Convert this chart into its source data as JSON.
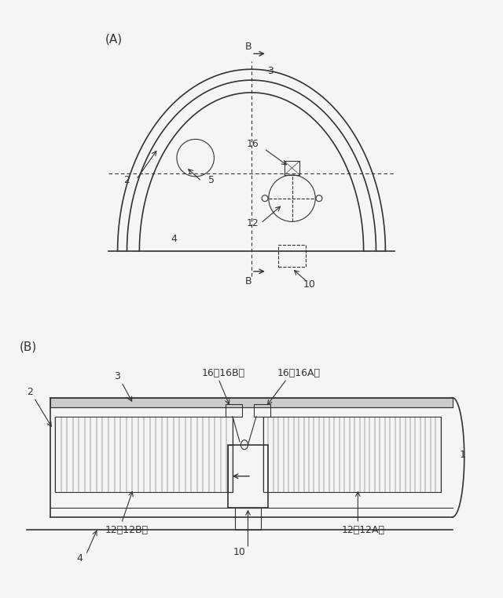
{
  "bg_color": "#f0f0f0",
  "line_color": "#333333",
  "fig_width": 6.4,
  "fig_height": 7.62,
  "panel_A_label": "(A)",
  "panel_B_label": "(B)",
  "label_2": "2",
  "label_3": "3",
  "label_4": "4",
  "label_5": "5",
  "label_10": "10",
  "label_12": "12",
  "label_16": "16",
  "label_B_top": "B",
  "label_B_bot": "B",
  "label_1": "1",
  "label_12A": "12（12A）",
  "label_12B": "12（12B）",
  "label_16A": "16（16A）",
  "label_16B": "16（16B）"
}
